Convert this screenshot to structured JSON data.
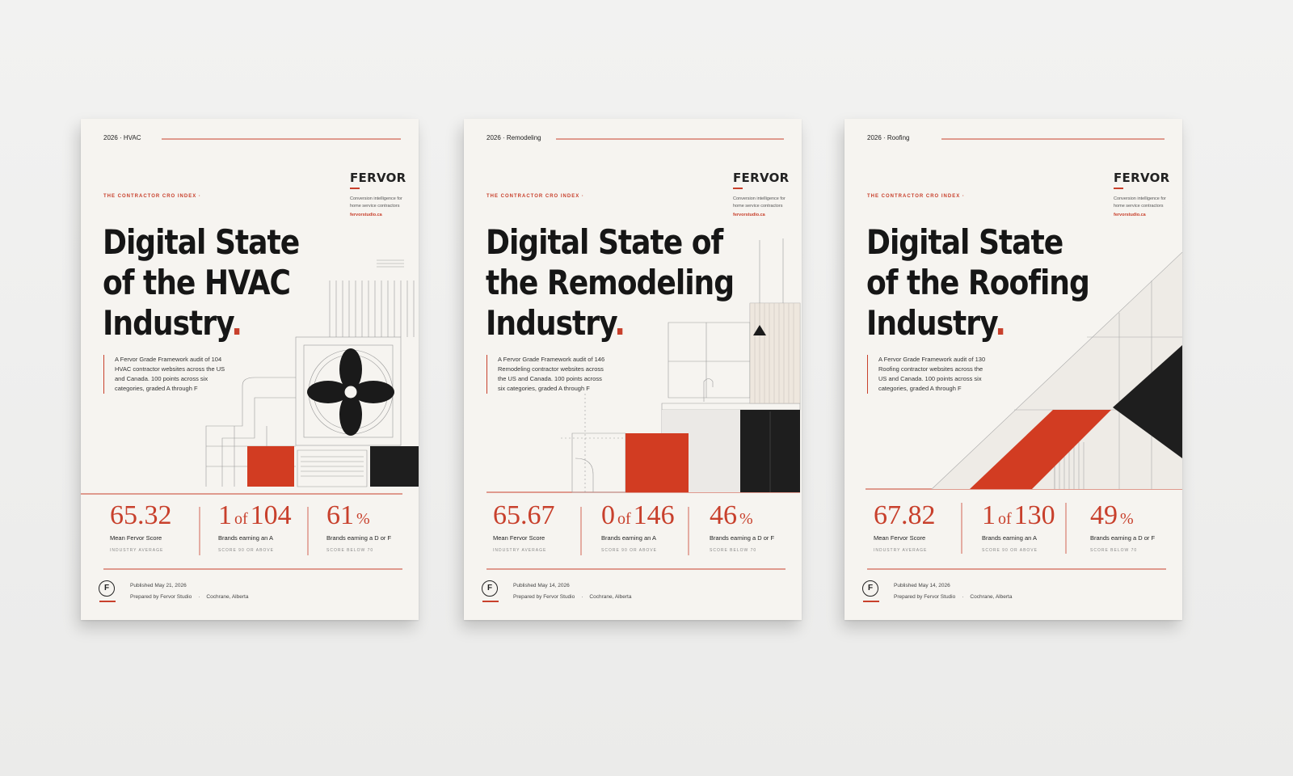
{
  "covers": [
    {
      "header": "2026 · HVAC",
      "brand": "FERVOR",
      "tagline": [
        "Conversion intelligence for",
        "home service contractors"
      ],
      "url": "fervorstudio.ca",
      "eyebrow": "THE CONTRACTOR CRO INDEX ·",
      "title": [
        "Digital State",
        "of the HVAC",
        "Industry"
      ],
      "title_mark": ".",
      "description": "A Fervor Grade Framework audit of 104 HVAC contractor websites across the US and Canada. 100 points across six categories, graded A through F",
      "stats": [
        {
          "value": "65.32",
          "label": "Mean Fervor Score",
          "note": "INDUSTRY AVERAGE"
        },
        {
          "value": "1",
          "joiner": "of",
          "total": "104",
          "label": "Brands earning an A",
          "note": "SCORE 90 OR ABOVE"
        },
        {
          "value": "61",
          "unit": "%",
          "label": "Brands earning a D or F",
          "note": "SCORE BELOW 70"
        }
      ],
      "logo": "F",
      "published": "Published May 21, 2026",
      "prepared": "Prepared by Fervor Studio",
      "separator": "·",
      "location": "Cochrane, Alberta"
    },
    {
      "header": "2026 · Remodeling",
      "brand": "FERVOR",
      "tagline": [
        "Conversion intelligence for",
        "home service contractors"
      ],
      "url": "fervorstudio.ca",
      "eyebrow": "THE CONTRACTOR CRO INDEX ·",
      "title": [
        "Digital State of",
        "the Remodeling",
        "Industry"
      ],
      "title_mark": ".",
      "description": "A Fervor Grade Framework audit of 146 Remodeling contractor websites across the US and Canada. 100 points across six categories, graded A through F",
      "stats": [
        {
          "value": "65.67",
          "label": "Mean Fervor Score",
          "note": "INDUSTRY AVERAGE"
        },
        {
          "value": "0",
          "joiner": "of",
          "total": "146",
          "label": "Brands earning an A",
          "note": "SCORE 90 OR ABOVE"
        },
        {
          "value": "46",
          "unit": "%",
          "label": "Brands earning a D or F",
          "note": "SCORE BELOW 70"
        }
      ],
      "logo": "F",
      "published": "Published May 14, 2026",
      "prepared": "Prepared by Fervor Studio",
      "separator": "·",
      "location": "Cochrane, Alberta"
    },
    {
      "header": "2026 · Roofing",
      "brand": "FERVOR",
      "tagline": [
        "Conversion intelligence for",
        "home service contractors"
      ],
      "url": "fervorstudio.ca",
      "eyebrow": "THE CONTRACTOR CRO INDEX ·",
      "title": [
        "Digital State",
        "of the Roofing",
        "Industry"
      ],
      "title_mark": ".",
      "description": "A Fervor Grade Framework audit of 130 Roofing contractor websites across the US and Canada. 100 points across six categories, graded A through F",
      "stats": [
        {
          "value": "67.82",
          "label": "Mean Fervor Score",
          "note": "INDUSTRY AVERAGE"
        },
        {
          "value": "1",
          "joiner": "of",
          "total": "130",
          "label": "Brands earning an A",
          "note": "SCORE 90 OR ABOVE"
        },
        {
          "value": "49",
          "unit": "%",
          "label": "Brands earning a D or F",
          "note": "SCORE BELOW 70"
        }
      ],
      "logo": "F",
      "published": "Published May 14, 2026",
      "prepared": "Prepared by Fervor Studio",
      "separator": "·",
      "location": "Cochrane, Alberta"
    }
  ]
}
